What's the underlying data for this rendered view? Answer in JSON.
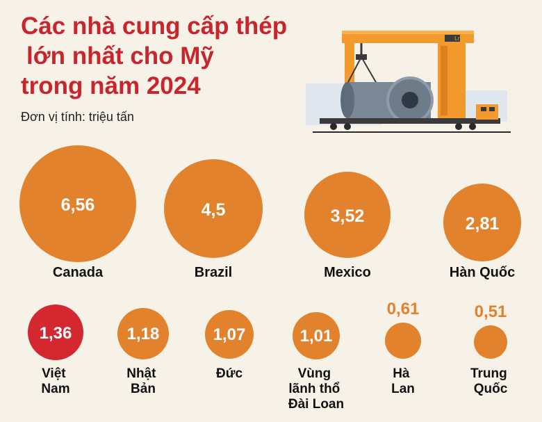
{
  "title_lines": [
    "Các nhà cung cấp thép",
    "lớn nhất cho Mỹ",
    "trong năm 2024"
  ],
  "unit_label": "Đơn vị tính: triệu tấn",
  "colors": {
    "bubble": "#e2822d",
    "highlight": "#d4272f",
    "title": "#c8252c",
    "background": "#f6f2e8"
  },
  "icons": [
    "crane-steel-coil-illustration"
  ],
  "chart_data": {
    "type": "bubble",
    "title": "Các nhà cung cấp thép lớn nhất cho Mỹ trong năm 2024",
    "unit": "triệu tấn",
    "categories": [
      "Canada",
      "Brazil",
      "Mexico",
      "Hàn Quốc",
      "Việt Nam",
      "Nhật Bản",
      "Đức",
      "Vùng lãnh thổ Đài Loan",
      "Hà Lan",
      "Trung Quốc"
    ],
    "value_labels": [
      "6,56",
      "4,5",
      "3,52",
      "2,81",
      "1,36",
      "1,18",
      "1,07",
      "1,01",
      "0,61",
      "0,51"
    ],
    "values": [
      6.56,
      4.5,
      3.52,
      2.81,
      1.36,
      1.18,
      1.07,
      1.01,
      0.61,
      0.51
    ],
    "label_lines": [
      [
        "Canada"
      ],
      [
        "Brazil"
      ],
      [
        "Mexico"
      ],
      [
        "Hàn Quốc"
      ],
      [
        "Việt",
        "Nam"
      ],
      [
        "Nhật",
        "Bản"
      ],
      [
        "Đức"
      ],
      [
        "Vùng",
        "lãnh thổ",
        "Đài Loan"
      ],
      [
        "Hà",
        "Lan"
      ],
      [
        "Trung",
        "Quốc"
      ]
    ],
    "highlight": "Việt Nam"
  }
}
